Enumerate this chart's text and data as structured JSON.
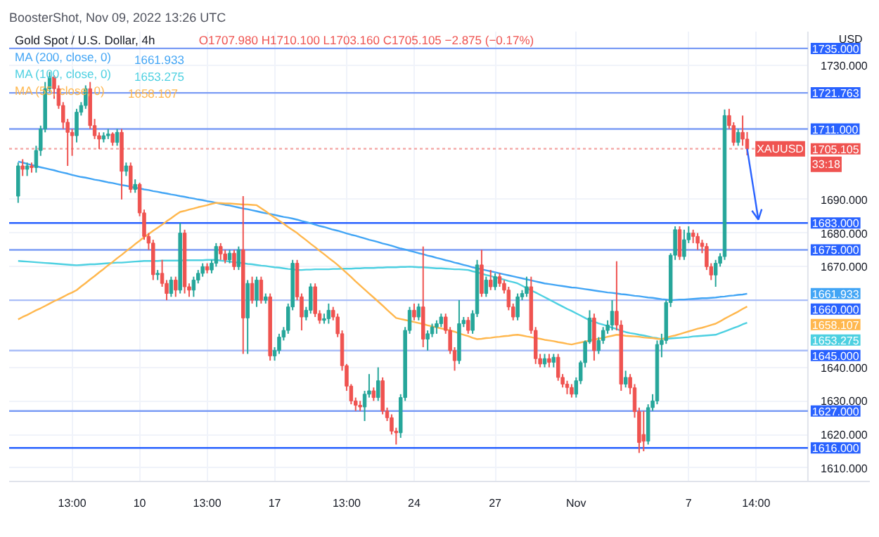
{
  "chart_data": {
    "type": "candlestick",
    "title": "Gold Spot / U.S. Dollar, 4h",
    "subtitle": "O1707.980 H1710.100 L1703.160 C1705.105 −2.875 (−0.17%)",
    "annotations": [
      "BoosterShot, Nov 09, 2022 13:26 UTC",
      "USD",
      {
        "text": "XAUUSD",
        "y": 1705.105
      },
      "33:18",
      "1705.105",
      "1661.933",
      "1653.275",
      "1658.107"
    ],
    "categories": [
      null,
      null,
      null,
      null,
      null,
      null,
      null,
      null,
      null,
      null,
      null,
      null,
      "13:00",
      null,
      null,
      null,
      null,
      null,
      null,
      null,
      null,
      null,
      null,
      null,
      null,
      null,
      null,
      "10",
      null,
      null,
      null,
      null,
      null,
      null,
      null,
      null,
      null,
      null,
      null,
      null,
      null,
      null,
      "13:00",
      null,
      null,
      null,
      null,
      null,
      null,
      null,
      null,
      null,
      null,
      null,
      null,
      null,
      null,
      "17",
      null,
      null,
      null,
      null,
      null,
      null,
      null,
      null,
      null,
      null,
      null,
      null,
      null,
      null,
      null,
      "13:00",
      null,
      null,
      null,
      null,
      null,
      null,
      null,
      null,
      null,
      null,
      null,
      null,
      null,
      null,
      "24",
      null,
      null,
      null,
      null,
      null,
      null,
      null,
      null,
      null,
      null,
      null,
      null,
      null,
      null,
      null,
      null,
      null,
      "27",
      null,
      null,
      null,
      null,
      null,
      null,
      null,
      null,
      null,
      null,
      null,
      null,
      null,
      null,
      null,
      null,
      null,
      "Nov",
      null,
      null,
      null,
      null,
      null,
      null,
      null,
      null,
      null,
      null,
      null,
      null,
      null,
      null,
      null,
      null,
      null,
      null,
      null,
      null,
      null,
      null,
      null,
      null,
      "7",
      null,
      null,
      null,
      null,
      null,
      null,
      null,
      null,
      null,
      null,
      null,
      null,
      null,
      null,
      "14:00",
      null,
      null,
      null,
      null,
      null,
      null,
      null,
      null,
      null,
      null,
      null
    ],
    "ohlc": [
      [
        1691,
        1701,
        1689,
        1700
      ],
      [
        1700,
        1702,
        1697,
        1699
      ],
      [
        1699,
        1701,
        1697,
        1700
      ],
      [
        1700,
        1701,
        1698,
        1699.5
      ],
      [
        1699.5,
        1706,
        1698,
        1704.6
      ],
      [
        1704.6,
        1712,
        1703,
        1711
      ],
      [
        1711,
        1725,
        1710,
        1723
      ],
      [
        1723,
        1728,
        1722,
        1726.5
      ],
      [
        1726.5,
        1727,
        1720,
        1723
      ],
      [
        1723,
        1724,
        1717,
        1718
      ],
      [
        1718,
        1719,
        1711,
        1713
      ],
      [
        1713,
        1714,
        1700,
        1710
      ],
      [
        1710,
        1711,
        1703,
        1709
      ],
      [
        1709,
        1717,
        1707,
        1716
      ],
      [
        1716,
        1719,
        1715,
        1718
      ],
      [
        1718,
        1724,
        1717,
        1723
      ],
      [
        1723,
        1725,
        1711,
        1712
      ],
      [
        1712,
        1714,
        1708,
        1709
      ],
      [
        1709,
        1710,
        1705,
        1708
      ],
      [
        1708,
        1710,
        1707,
        1709
      ],
      [
        1709,
        1711,
        1708,
        1709.5
      ],
      [
        1709.5,
        1710,
        1706,
        1707
      ],
      [
        1707,
        1711,
        1706,
        1710
      ],
      [
        1710,
        1711,
        1690,
        1698.4
      ],
      [
        1698.4,
        1701,
        1697,
        1700
      ],
      [
        1700,
        1701,
        1692,
        1693
      ],
      [
        1693,
        1696,
        1692,
        1694.5
      ],
      [
        1694.5,
        1695,
        1685,
        1686
      ],
      [
        1686,
        1687,
        1678,
        1679
      ],
      [
        1679,
        1680,
        1675,
        1677
      ],
      [
        1677,
        1678,
        1666,
        1667.6
      ],
      [
        1667.6,
        1669,
        1666,
        1668
      ],
      [
        1668,
        1672,
        1664,
        1665
      ],
      [
        1665,
        1666,
        1660,
        1662
      ],
      [
        1662,
        1667,
        1661,
        1666
      ],
      [
        1666,
        1667,
        1661,
        1663
      ],
      [
        1663,
        1683,
        1662,
        1680
      ],
      [
        1680,
        1681,
        1662,
        1664
      ],
      [
        1664,
        1665,
        1661,
        1663
      ],
      [
        1663,
        1667,
        1661,
        1666
      ],
      [
        1666,
        1669,
        1665,
        1668
      ],
      [
        1668,
        1671,
        1667,
        1670
      ],
      [
        1670,
        1671,
        1668,
        1669
      ],
      [
        1669,
        1672,
        1668,
        1671
      ],
      [
        1671,
        1677,
        1670,
        1676
      ],
      [
        1676,
        1677,
        1672,
        1673.8
      ],
      [
        1673.8,
        1675,
        1671,
        1672
      ],
      [
        1672,
        1675,
        1671,
        1674
      ],
      [
        1674,
        1675,
        1669,
        1670
      ],
      [
        1670,
        1676,
        1669,
        1675
      ],
      [
        1675,
        1691,
        1644,
        1654.7
      ],
      [
        1654.7,
        1666,
        1644,
        1665
      ],
      [
        1665,
        1667,
        1659,
        1660
      ],
      [
        1660,
        1667,
        1658,
        1666
      ],
      [
        1666,
        1667,
        1659,
        1660
      ],
      [
        1660,
        1662,
        1659,
        1661
      ],
      [
        1661,
        1662,
        1642,
        1643.4
      ],
      [
        1643.4,
        1646,
        1642,
        1645
      ],
      [
        1645,
        1650,
        1644,
        1649
      ],
      [
        1649,
        1652,
        1648,
        1651
      ],
      [
        1651,
        1659,
        1650,
        1658
      ],
      [
        1658,
        1672,
        1657,
        1671
      ],
      [
        1671,
        1672,
        1660,
        1661
      ],
      [
        1661,
        1662,
        1651,
        1655
      ],
      [
        1655,
        1658,
        1654,
        1657
      ],
      [
        1657,
        1665,
        1656,
        1664
      ],
      [
        1664,
        1665,
        1655,
        1656
      ],
      [
        1656,
        1657,
        1653,
        1654
      ],
      [
        1654,
        1656,
        1653,
        1654.5
      ],
      [
        1654.5,
        1659,
        1653,
        1657
      ],
      [
        1657,
        1658,
        1654,
        1655
      ],
      [
        1655,
        1656,
        1649,
        1650
      ],
      [
        1650,
        1651,
        1639,
        1640.5
      ],
      [
        1640.5,
        1641,
        1633,
        1634.4
      ],
      [
        1634.4,
        1635,
        1629,
        1630
      ],
      [
        1630,
        1631,
        1627,
        1628.7
      ],
      [
        1628.7,
        1630,
        1627,
        1628.2
      ],
      [
        1628.2,
        1633,
        1624,
        1632
      ],
      [
        1632,
        1638,
        1631,
        1633
      ],
      [
        1633,
        1634,
        1630,
        1631
      ],
      [
        1631,
        1640,
        1630,
        1636
      ],
      [
        1636,
        1637,
        1626,
        1627
      ],
      [
        1627,
        1628,
        1624,
        1625
      ],
      [
        1625,
        1626,
        1620,
        1621
      ],
      [
        1621,
        1622,
        1617,
        1620.5
      ],
      [
        1620.5,
        1632,
        1619,
        1631
      ],
      [
        1631,
        1652,
        1630,
        1651
      ],
      [
        1651,
        1658,
        1650,
        1657
      ],
      [
        1657,
        1659,
        1654,
        1655
      ],
      [
        1655,
        1659,
        1654,
        1658
      ],
      [
        1658,
        1676,
        1646,
        1648.4
      ],
      [
        1648.4,
        1651,
        1645,
        1650
      ],
      [
        1650,
        1653,
        1649,
        1652
      ],
      [
        1652,
        1654,
        1650,
        1653
      ],
      [
        1653,
        1656,
        1652,
        1655
      ],
      [
        1655,
        1656,
        1650,
        1651
      ],
      [
        1651,
        1652,
        1644,
        1645
      ],
      [
        1645,
        1646,
        1639,
        1642
      ],
      [
        1642,
        1660,
        1641,
        1653
      ],
      [
        1653,
        1655,
        1652,
        1654
      ],
      [
        1654,
        1655,
        1650,
        1651
      ],
      [
        1651,
        1657,
        1650,
        1656
      ],
      [
        1656,
        1672,
        1655,
        1670.5
      ],
      [
        1670.5,
        1675,
        1661,
        1662
      ],
      [
        1662,
        1667,
        1661,
        1666
      ],
      [
        1666,
        1669,
        1663,
        1664
      ],
      [
        1664,
        1668,
        1663,
        1667
      ],
      [
        1667,
        1668,
        1664,
        1665
      ],
      [
        1665,
        1666,
        1662,
        1663
      ],
      [
        1663,
        1664,
        1657,
        1658
      ],
      [
        1658,
        1659,
        1654,
        1655
      ],
      [
        1655,
        1662,
        1654,
        1661
      ],
      [
        1661,
        1663,
        1660,
        1662
      ],
      [
        1662,
        1667,
        1661,
        1664
      ],
      [
        1664,
        1667,
        1650,
        1651
      ],
      [
        1651,
        1652,
        1641,
        1642.6
      ],
      [
        1642.6,
        1644,
        1640,
        1641
      ],
      [
        1641,
        1644,
        1640,
        1642.6
      ],
      [
        1642.6,
        1644,
        1640,
        1641.5
      ],
      [
        1641.5,
        1644,
        1640,
        1643
      ],
      [
        1643,
        1644,
        1636,
        1637
      ],
      [
        1637,
        1638,
        1634,
        1635
      ],
      [
        1635,
        1636,
        1632,
        1634
      ],
      [
        1634,
        1635,
        1631,
        1632
      ],
      [
        1632,
        1637,
        1631,
        1636
      ],
      [
        1636,
        1642,
        1635,
        1641.4
      ],
      [
        1641.4,
        1648,
        1640,
        1647.6
      ],
      [
        1647.6,
        1657,
        1647,
        1654.7
      ],
      [
        1654.7,
        1656,
        1642,
        1645
      ],
      [
        1645,
        1649,
        1644,
        1648
      ],
      [
        1648,
        1652,
        1647,
        1651
      ],
      [
        1651,
        1654,
        1650,
        1652.6
      ],
      [
        1652.6,
        1660,
        1651,
        1656.7
      ],
      [
        1656.7,
        1671.6,
        1651,
        1652.6
      ],
      [
        1652.6,
        1654,
        1633,
        1635
      ],
      [
        1635,
        1639,
        1634,
        1637
      ],
      [
        1637,
        1638,
        1632,
        1633.9
      ],
      [
        1633.9,
        1635,
        1625,
        1626.8
      ],
      [
        1626.8,
        1628,
        1614.5,
        1617.6
      ],
      [
        1620,
        1627,
        1615,
        1618
      ],
      [
        1618,
        1629,
        1617,
        1628
      ],
      [
        1628,
        1632,
        1627,
        1630
      ],
      [
        1630,
        1648,
        1629,
        1646.8
      ],
      [
        1646.8,
        1650,
        1643,
        1648
      ],
      [
        1648,
        1660,
        1647,
        1659.3
      ],
      [
        1659.3,
        1674,
        1658,
        1673.4
      ],
      [
        1673.4,
        1682,
        1672,
        1681
      ],
      [
        1681,
        1682,
        1672,
        1673
      ],
      [
        1673,
        1681,
        1672,
        1678
      ],
      [
        1678,
        1682,
        1677,
        1680
      ],
      [
        1680,
        1681,
        1677,
        1679
      ],
      [
        1679,
        1680,
        1675,
        1677
      ],
      [
        1677,
        1678,
        1674,
        1676
      ],
      [
        1676,
        1677,
        1669,
        1670
      ],
      [
        1670,
        1671,
        1666,
        1667.5
      ],
      [
        1667.5,
        1672,
        1664,
        1671
      ],
      [
        1671,
        1674,
        1670,
        1673
      ],
      [
        1673,
        1716.8,
        1672,
        1715
      ],
      [
        1715,
        1717,
        1711,
        1712
      ],
      [
        1712,
        1713,
        1706,
        1707
      ],
      [
        1707,
        1711,
        1706,
        1710
      ],
      [
        1710,
        1715,
        1706,
        1707.98
      ],
      [
        1707.98,
        1710.1,
        1703.16,
        1705.105
      ],
      null,
      null,
      null,
      null,
      null,
      null,
      null,
      null,
      null,
      null,
      null,
      null,
      null
    ],
    "series": [
      {
        "name": "MA (200, close, 0)",
        "type": "line",
        "color": "#42a5f5",
        "values": [
          1701.3,
          1701.0,
          1700.6,
          1700.3,
          1699.9,
          1699.6,
          1699.3,
          1699.0,
          1698.7,
          1698.3,
          1698.0,
          1697.7,
          1697.3,
          1697.0,
          1696.7,
          1696.5,
          1696.2,
          1695.9,
          1695.7,
          1695.4,
          1695.1,
          1694.9,
          1694.6,
          1694.3,
          1694.1,
          1693.8,
          1693.5,
          1693.3,
          1693.0,
          1692.8,
          1692.5,
          1692.3,
          1692.0,
          1691.8,
          1691.5,
          1691.3,
          1691.0,
          1690.8,
          1690.5,
          1690.3,
          1690.0,
          1689.8,
          1689.5,
          1689.3,
          1689.0,
          1688.7,
          1688.4,
          1688.2,
          1687.9,
          1687.6,
          1687.3,
          1687.1,
          1686.8,
          1686.5,
          1686.2,
          1685.9,
          1685.7,
          1685.4,
          1685.1,
          1684.8,
          1684.6,
          1684.3,
          1684.0,
          1683.6,
          1683.3,
          1682.9,
          1682.5,
          1682.1,
          1681.8,
          1681.4,
          1681.0,
          1680.7,
          1680.3,
          1679.9,
          1679.5,
          1679.2,
          1678.8,
          1678.4,
          1678.0,
          1677.7,
          1677.3,
          1676.9,
          1676.6,
          1676.2,
          1675.8,
          1675.4,
          1675.1,
          1674.7,
          1674.4,
          1674.0,
          1673.7,
          1673.3,
          1673.0,
          1672.6,
          1672.3,
          1671.9,
          1671.6,
          1671.2,
          1670.9,
          1670.5,
          1670.2,
          1669.8,
          1669.5,
          1669.2,
          1668.9,
          1668.6,
          1668.3,
          1668.0,
          1667.7,
          1667.4,
          1667.1,
          1666.8,
          1666.5,
          1666.2,
          1665.9,
          1665.6,
          1665.3,
          1665.0,
          1664.8,
          1664.6,
          1664.4,
          1664.2,
          1664.0,
          1663.8,
          1663.7,
          1663.5,
          1663.3,
          1663.1,
          1662.9,
          1662.7,
          1662.5,
          1662.3,
          1662.2,
          1662.0,
          1661.8,
          1661.7,
          1661.5,
          1661.3,
          1661.2,
          1661.0,
          1660.8,
          1660.7,
          1660.5,
          1660.3,
          1660.2,
          1660.0,
          1660.1,
          1660.2,
          1660.2,
          1660.3,
          1660.4,
          1660.5,
          1660.6,
          1660.6,
          1660.7,
          1660.8,
          1661.0,
          1661.1,
          1661.3,
          1661.4,
          1661.6,
          1661.7,
          1661.933,
          null,
          null,
          null,
          null,
          null,
          null,
          null,
          null,
          null,
          null,
          null,
          null,
          null
        ]
      },
      {
        "name": "MA (100, close, 0)",
        "type": "line",
        "color": "#4dd0e1",
        "values": [
          1671.7,
          1671.6,
          1671.5,
          1671.4,
          1671.3,
          1671.2,
          1671.1,
          1671.0,
          1670.9,
          1670.8,
          1670.7,
          1670.6,
          1670.5,
          1670.4,
          1670.5,
          1670.6,
          1670.7,
          1670.7,
          1670.8,
          1670.9,
          1671.0,
          1671.1,
          1671.2,
          1671.2,
          1671.3,
          1671.4,
          1671.5,
          1671.6,
          1671.7,
          1671.7,
          1671.7,
          1671.7,
          1671.8,
          1671.8,
          1671.8,
          1671.8,
          1671.8,
          1671.9,
          1671.9,
          1671.9,
          1671.9,
          1671.9,
          1672.0,
          1672.0,
          1672.0,
          1671.8,
          1671.7,
          1671.5,
          1671.3,
          1671.2,
          1671.0,
          1670.8,
          1670.7,
          1670.5,
          1670.3,
          1670.2,
          1670.0,
          1669.8,
          1669.7,
          1669.5,
          1669.3,
          1669.2,
          1669.0,
          1669.0,
          1669.1,
          1669.1,
          1669.2,
          1669.2,
          1669.2,
          1669.2,
          1669.3,
          1669.3,
          1669.4,
          1669.4,
          1669.4,
          1669.5,
          1669.5,
          1669.6,
          1669.6,
          1669.6,
          1669.7,
          1669.7,
          1669.8,
          1669.8,
          1669.8,
          1669.9,
          1669.9,
          1670.0,
          1669.9,
          1669.8,
          1669.8,
          1669.7,
          1669.6,
          1669.5,
          1669.5,
          1669.4,
          1669.3,
          1669.2,
          1669.2,
          1669.1,
          1669.0,
          1668.6,
          1668.3,
          1667.9,
          1667.5,
          1667.2,
          1666.8,
          1666.5,
          1666.1,
          1665.7,
          1665.4,
          1665.0,
          1664.3,
          1663.6,
          1662.9,
          1662.3,
          1661.6,
          1660.9,
          1660.2,
          1659.5,
          1658.8,
          1658.1,
          1657.4,
          1656.8,
          1656.1,
          1655.4,
          1654.7,
          1654.0,
          1653.6,
          1653.1,
          1652.7,
          1652.3,
          1651.8,
          1651.4,
          1650.9,
          1650.5,
          1650.2,
          1650.0,
          1649.7,
          1649.5,
          1649.2,
          1648.9,
          1648.7,
          1648.4,
          1648.5,
          1648.6,
          1648.7,
          1648.8,
          1648.9,
          1649.0,
          1649.2,
          1649.3,
          1649.4,
          1649.5,
          1649.6,
          1649.7,
          1650.2,
          1650.7,
          1651.2,
          1651.7,
          1652.2,
          1652.8,
          1653.275,
          null,
          null,
          null,
          null,
          null,
          null,
          null,
          null,
          null,
          null,
          null,
          null,
          null
        ]
      },
      {
        "name": "MA (55, close, 0)",
        "type": "line",
        "color": "#ffb74d",
        "values": [
          1654.3,
          1655.0,
          1655.6,
          1656.3,
          1657.0,
          1657.6,
          1658.3,
          1659.0,
          1659.7,
          1660.3,
          1661.0,
          1661.7,
          1662.3,
          1663.0,
          1664.1,
          1665.1,
          1666.2,
          1667.2,
          1668.3,
          1669.3,
          1670.4,
          1671.4,
          1672.5,
          1673.5,
          1674.6,
          1675.6,
          1676.7,
          1677.7,
          1678.8,
          1679.7,
          1680.7,
          1681.6,
          1682.5,
          1683.5,
          1684.4,
          1685.4,
          1686.3,
          1686.6,
          1687.0,
          1687.3,
          1687.7,
          1688.0,
          1688.3,
          1688.7,
          1689.0,
          1688.9,
          1688.8,
          1688.8,
          1688.7,
          1688.6,
          1688.5,
          1688.5,
          1688.4,
          1688.3,
          1687.4,
          1686.5,
          1685.5,
          1684.6,
          1683.7,
          1682.8,
          1681.8,
          1680.9,
          1680.0,
          1678.9,
          1677.9,
          1676.8,
          1675.8,
          1674.7,
          1673.7,
          1672.6,
          1671.6,
          1670.5,
          1669.3,
          1668.1,
          1666.9,
          1665.6,
          1664.4,
          1663.2,
          1662.0,
          1660.8,
          1659.6,
          1658.4,
          1657.1,
          1655.9,
          1654.7,
          1654.4,
          1654.1,
          1653.8,
          1653.5,
          1653.2,
          1652.9,
          1652.5,
          1652.2,
          1651.9,
          1651.6,
          1651.3,
          1651.0,
          1650.6,
          1650.1,
          1649.7,
          1649.3,
          1648.8,
          1648.4,
          1648.5,
          1648.7,
          1648.8,
          1649.0,
          1649.1,
          1649.3,
          1649.4,
          1649.6,
          1649.7,
          1649.5,
          1649.2,
          1649.0,
          1648.7,
          1648.5,
          1648.2,
          1648.0,
          1647.8,
          1647.5,
          1647.3,
          1647.0,
          1646.8,
          1647.1,
          1647.4,
          1647.7,
          1648.0,
          1648.3,
          1648.5,
          1648.8,
          1649.1,
          1649.4,
          1649.7,
          1649.6,
          1649.4,
          1649.3,
          1649.2,
          1649.1,
          1648.9,
          1648.8,
          1648.7,
          1648.5,
          1648.4,
          1648.8,
          1649.2,
          1649.5,
          1649.9,
          1650.3,
          1650.7,
          1651.1,
          1651.5,
          1651.8,
          1652.2,
          1652.6,
          1653.0,
          1653.7,
          1654.5,
          1655.2,
          1655.9,
          1656.6,
          1657.4,
          1658.107,
          null,
          null,
          null,
          null,
          null,
          null,
          null,
          null,
          null,
          null,
          null,
          null,
          null
        ]
      }
    ],
    "ref_lines": [
      {
        "axis": "y",
        "value": 1735,
        "label": "1735.000",
        "color": "#7b9cf5"
      },
      {
        "axis": "y",
        "value": 1721.763,
        "label": "1721.763",
        "color": "#7b9cf5"
      },
      {
        "axis": "y",
        "value": 1711,
        "label": "1711.000",
        "color": "#7b9cf5"
      },
      {
        "axis": "y",
        "value": 1705.105,
        "color": "#f4a3a1",
        "line_style": "dotted"
      },
      {
        "axis": "y",
        "value": 1683,
        "label": "1683.000",
        "color": "#2962ff"
      },
      {
        "axis": "y",
        "value": 1675,
        "label": "1675.000",
        "color": "#7b9cf5"
      },
      {
        "axis": "y",
        "value": 1660,
        "label": "1660.000",
        "color": "#a9bdf8"
      },
      {
        "axis": "y",
        "value": 1645,
        "label": "1645.000",
        "color": "#a9bdf8"
      },
      {
        "axis": "y",
        "value": 1627,
        "label": "1627.000",
        "color": "#7b9cf5"
      },
      {
        "axis": "y",
        "value": 1616,
        "label": "1616.000",
        "color": "#2962ff"
      }
    ],
    "ylim": [
      1606,
      1740
    ],
    "yticks": [
      {
        "value": 1610,
        "label": "1610.000"
      },
      {
        "value": 1620,
        "label": "1620.000"
      },
      {
        "value": 1630,
        "label": "1630.000"
      },
      {
        "value": 1640,
        "label": "1640.000"
      },
      {
        "value": 1670,
        "label": "1670.000"
      },
      {
        "value": 1680,
        "label": "1680.000"
      },
      {
        "value": 1690,
        "label": "1690.000"
      },
      {
        "value": 1730,
        "label": "1730.000"
      }
    ],
    "grid": true,
    "legend": "top left"
  }
}
